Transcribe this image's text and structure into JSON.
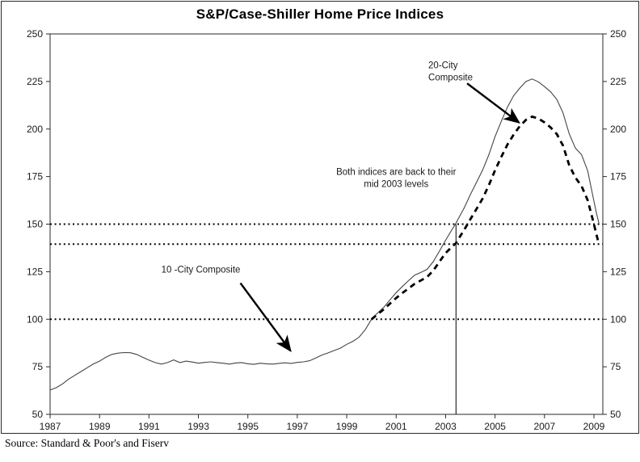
{
  "title": "S&P/Case-Shiller Home Price Indices",
  "source_note": "Source: Standard & Poor's and Fiserv",
  "colors": {
    "background": "#ffffff",
    "frame": "#2a2a2a",
    "solid_series": "#444444",
    "dashed_series": "#000000",
    "reference_dotted": "#000000",
    "text": "#000000"
  },
  "chart_data": {
    "type": "line",
    "title": "S&P/Case-Shiller Home Price Indices",
    "xlabel": "",
    "ylabel": "",
    "xlim": [
      1987,
      2009.36
    ],
    "ylim": [
      50,
      250
    ],
    "x_ticks": [
      1987,
      1989,
      1991,
      1993,
      1995,
      1997,
      1999,
      2001,
      2003,
      2005,
      2007,
      2009
    ],
    "y_ticks": [
      50,
      75,
      100,
      125,
      150,
      175,
      200,
      225,
      250
    ],
    "y_axis_sides": [
      "left",
      "right"
    ],
    "grid": false,
    "legend_position": "none",
    "series": [
      {
        "name": "10-City Composite",
        "style": "solid",
        "points": [
          [
            1987.0,
            62.8
          ],
          [
            1987.25,
            64.0
          ],
          [
            1987.5,
            66.0
          ],
          [
            1987.75,
            68.5
          ],
          [
            1988.0,
            70.5
          ],
          [
            1988.25,
            72.5
          ],
          [
            1988.5,
            74.5
          ],
          [
            1988.75,
            76.5
          ],
          [
            1989.0,
            78.0
          ],
          [
            1989.25,
            80.0
          ],
          [
            1989.5,
            81.5
          ],
          [
            1989.75,
            82.2
          ],
          [
            1990.0,
            82.5
          ],
          [
            1990.25,
            82.4
          ],
          [
            1990.5,
            81.5
          ],
          [
            1990.75,
            80.0
          ],
          [
            1991.0,
            78.5
          ],
          [
            1991.25,
            77.2
          ],
          [
            1991.5,
            76.4
          ],
          [
            1991.75,
            77.2
          ],
          [
            1992.0,
            78.6
          ],
          [
            1992.25,
            77.2
          ],
          [
            1992.5,
            78.0
          ],
          [
            1992.75,
            77.5
          ],
          [
            1993.0,
            76.9
          ],
          [
            1993.25,
            77.3
          ],
          [
            1993.5,
            77.6
          ],
          [
            1993.75,
            77.2
          ],
          [
            1994.0,
            76.9
          ],
          [
            1994.25,
            76.4
          ],
          [
            1994.5,
            77.0
          ],
          [
            1994.75,
            77.2
          ],
          [
            1995.0,
            76.6
          ],
          [
            1995.25,
            76.3
          ],
          [
            1995.5,
            76.9
          ],
          [
            1995.75,
            76.6
          ],
          [
            1996.0,
            76.4
          ],
          [
            1996.25,
            76.8
          ],
          [
            1996.5,
            77.1
          ],
          [
            1996.75,
            76.8
          ],
          [
            1997.0,
            77.3
          ],
          [
            1997.25,
            77.6
          ],
          [
            1997.5,
            78.2
          ],
          [
            1997.75,
            79.6
          ],
          [
            1998.0,
            81.2
          ],
          [
            1998.25,
            82.3
          ],
          [
            1998.5,
            83.6
          ],
          [
            1998.75,
            84.8
          ],
          [
            1999.0,
            86.8
          ],
          [
            1999.25,
            88.4
          ],
          [
            1999.5,
            90.6
          ],
          [
            1999.75,
            94.5
          ],
          [
            2000.0,
            100.0
          ],
          [
            2000.25,
            103.3
          ],
          [
            2000.5,
            106.3
          ],
          [
            2000.75,
            110.2
          ],
          [
            2001.0,
            114.0
          ],
          [
            2001.25,
            117.2
          ],
          [
            2001.5,
            120.3
          ],
          [
            2001.75,
            123.2
          ],
          [
            2002.0,
            124.6
          ],
          [
            2002.25,
            126.2
          ],
          [
            2002.5,
            130.3
          ],
          [
            2002.75,
            135.8
          ],
          [
            2003.0,
            141.5
          ],
          [
            2003.25,
            147.0
          ],
          [
            2003.42,
            150.5
          ],
          [
            2003.5,
            152.5
          ],
          [
            2003.75,
            158.5
          ],
          [
            2004.0,
            165.5
          ],
          [
            2004.25,
            172.0
          ],
          [
            2004.5,
            178.5
          ],
          [
            2004.75,
            186.5
          ],
          [
            2005.0,
            196.0
          ],
          [
            2005.25,
            204.0
          ],
          [
            2005.5,
            211.5
          ],
          [
            2005.75,
            217.5
          ],
          [
            2006.0,
            221.5
          ],
          [
            2006.25,
            225.0
          ],
          [
            2006.5,
            226.3
          ],
          [
            2006.75,
            224.8
          ],
          [
            2007.0,
            222.3
          ],
          [
            2007.25,
            219.5
          ],
          [
            2007.5,
            215.5
          ],
          [
            2007.75,
            208.5
          ],
          [
            2008.0,
            197.5
          ],
          [
            2008.25,
            190.0
          ],
          [
            2008.5,
            186.5
          ],
          [
            2008.75,
            178.0
          ],
          [
            2009.0,
            162.0
          ],
          [
            2009.1,
            156.0
          ],
          [
            2009.2,
            150.5
          ]
        ]
      },
      {
        "name": "20-City Composite",
        "style": "dashed",
        "points": [
          [
            2000.0,
            100.0
          ],
          [
            2000.25,
            102.6
          ],
          [
            2000.5,
            105.2
          ],
          [
            2000.75,
            108.2
          ],
          [
            2001.0,
            111.2
          ],
          [
            2001.25,
            113.8
          ],
          [
            2001.5,
            116.2
          ],
          [
            2001.75,
            118.6
          ],
          [
            2002.0,
            120.4
          ],
          [
            2002.25,
            122.2
          ],
          [
            2002.5,
            125.6
          ],
          [
            2002.75,
            130.2
          ],
          [
            2003.0,
            134.8
          ],
          [
            2003.25,
            138.0
          ],
          [
            2003.42,
            140.0
          ],
          [
            2003.5,
            141.8
          ],
          [
            2003.75,
            147.0
          ],
          [
            2004.0,
            152.5
          ],
          [
            2004.25,
            158.0
          ],
          [
            2004.5,
            163.5
          ],
          [
            2004.75,
            170.5
          ],
          [
            2005.0,
            178.3
          ],
          [
            2005.25,
            185.3
          ],
          [
            2005.5,
            191.8
          ],
          [
            2005.75,
            197.0
          ],
          [
            2006.0,
            201.5
          ],
          [
            2006.25,
            204.8
          ],
          [
            2006.5,
            206.5
          ],
          [
            2006.75,
            205.5
          ],
          [
            2007.0,
            203.5
          ],
          [
            2007.25,
            200.8
          ],
          [
            2007.5,
            197.3
          ],
          [
            2007.75,
            191.3
          ],
          [
            2008.0,
            181.0
          ],
          [
            2008.25,
            174.5
          ],
          [
            2008.5,
            170.0
          ],
          [
            2008.75,
            162.5
          ],
          [
            2009.0,
            150.0
          ],
          [
            2009.1,
            144.7
          ],
          [
            2009.2,
            139.5
          ]
        ]
      }
    ],
    "reference_lines": {
      "horizontal_dotted": [
        100,
        139.5,
        150
      ],
      "vertical": {
        "x": 2003.42,
        "y_from": 50,
        "y_to": 150
      }
    },
    "annotations": [
      {
        "id": "label-20city",
        "lines": [
          "20-City",
          "Composite"
        ],
        "anchor": [
          2002.3,
          232
        ],
        "align": "start",
        "arrow": {
          "from": [
            2003.87,
            224
          ],
          "to": [
            2005.96,
            203.5
          ]
        }
      },
      {
        "id": "note-mid2003",
        "lines": [
          "Both indices are back to their",
          "mid 2003 levels"
        ],
        "anchor": [
          2001.0,
          176
        ],
        "align": "middle",
        "arrow": null
      },
      {
        "id": "label-10city",
        "lines": [
          "10 -City Composite"
        ],
        "anchor": [
          1991.5,
          124.5
        ],
        "align": "start",
        "arrow": {
          "from": [
            1994.7,
            119
          ],
          "to": [
            1996.72,
            83.5
          ]
        }
      }
    ]
  }
}
